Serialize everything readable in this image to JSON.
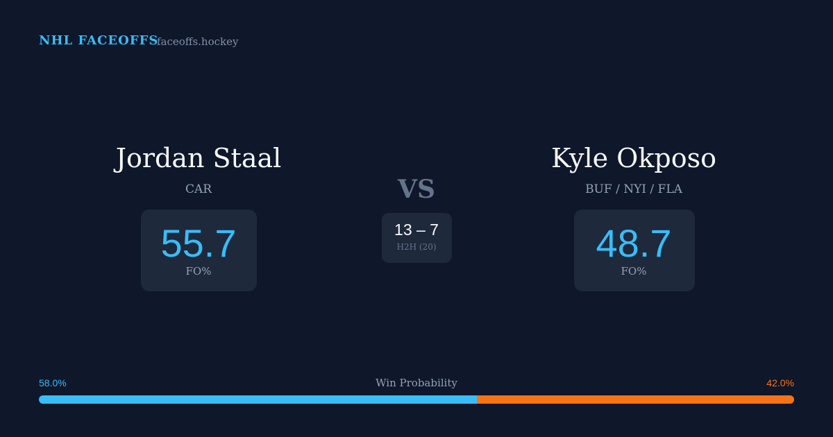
{
  "header": {
    "brand": "NHL FACEOFFS",
    "site": "faceoffs.hockey"
  },
  "players": [
    {
      "name": "Jordan Staal",
      "team": "CAR",
      "stat": 55.7,
      "stat_label": "FO%"
    },
    {
      "name": "Kyle Okposo",
      "team": "BUF / NYI / FLA",
      "stat": 48.7,
      "stat_label": "FO%"
    }
  ],
  "versus": "VS",
  "head_to_head": {
    "score": "13 – 7",
    "label": "H2H (20)"
  },
  "win_probability": {
    "title": "Win Probability",
    "values": [
      58.0,
      42.0
    ],
    "value_labels": [
      "58.0%",
      "42.0%"
    ],
    "colors": [
      "#38bdf8",
      "#f97316"
    ]
  }
}
